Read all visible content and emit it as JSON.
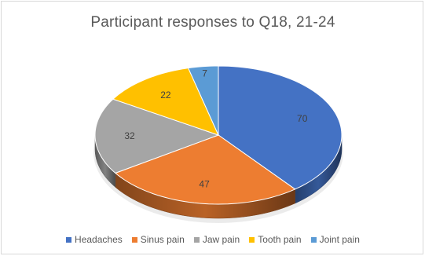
{
  "chart_data": {
    "type": "pie",
    "title": "Participant responses to Q18, 21-24",
    "categories": [
      "Headaches",
      "Sinus pain",
      "Jaw pain",
      "Tooth pain",
      "Joint pain"
    ],
    "values": [
      70,
      47,
      32,
      22,
      7
    ],
    "colors": [
      "#4472c4",
      "#ed7d31",
      "#a5a5a5",
      "#ffc000",
      "#5b9bd5"
    ],
    "data_labels": [
      "70",
      "47",
      "32",
      "22",
      "7"
    ],
    "style": "3d-pie",
    "legend_position": "bottom"
  }
}
